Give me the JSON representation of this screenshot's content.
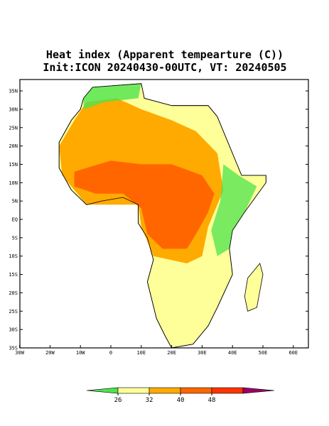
{
  "title": "Heat index (Apparent tempearture (C))",
  "subtitle": "Init:ICON 20240430-00UTC, VT: 20240505",
  "map": {
    "lat_ticks": [
      {
        "value": 35,
        "label": "35N"
      },
      {
        "value": 30,
        "label": "30N"
      },
      {
        "value": 25,
        "label": "25N"
      },
      {
        "value": 20,
        "label": "20N"
      },
      {
        "value": 15,
        "label": "15N"
      },
      {
        "value": 10,
        "label": "10N"
      },
      {
        "value": 5,
        "label": "5N"
      },
      {
        "value": 0,
        "label": "EQ"
      },
      {
        "value": -5,
        "label": "5S"
      },
      {
        "value": -10,
        "label": "10S"
      },
      {
        "value": -15,
        "label": "15S"
      },
      {
        "value": -20,
        "label": "20S"
      },
      {
        "value": -25,
        "label": "25S"
      },
      {
        "value": -30,
        "label": "30S"
      },
      {
        "value": -35,
        "label": "35S"
      }
    ],
    "lon_ticks": [
      {
        "value": -30,
        "label": "30W"
      },
      {
        "value": -20,
        "label": "20W"
      },
      {
        "value": -10,
        "label": "10W"
      },
      0,
      {
        "value": 10,
        "label": "10E"
      },
      {
        "value": 20,
        "label": "20E"
      },
      {
        "value": 30,
        "label": "30E"
      },
      {
        "value": 40,
        "label": "40E"
      },
      {
        "value": 50,
        "label": "50E"
      },
      {
        "value": 60,
        "label": "60E"
      }
    ]
  },
  "colorbar": {
    "levels": [
      26,
      32,
      40,
      48
    ],
    "colors": [
      "#4de34d",
      "#ffff99",
      "#ffaa00",
      "#ff6600",
      "#ff3300",
      "#990066"
    ]
  }
}
